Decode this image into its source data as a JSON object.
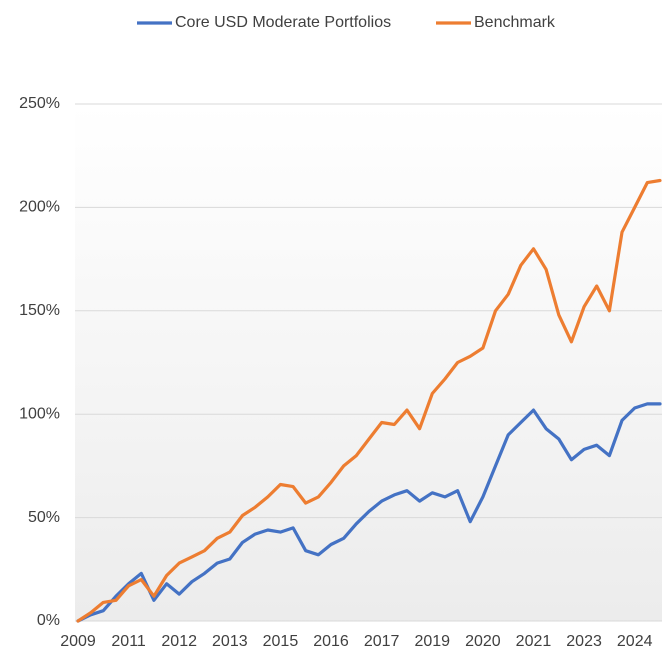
{
  "chart_data": {
    "type": "line",
    "categories": [
      "2009",
      null,
      null,
      null,
      "2011",
      null,
      null,
      null,
      "2012",
      null,
      null,
      null,
      "2013",
      null,
      null,
      null,
      "2015",
      null,
      null,
      null,
      "2016",
      null,
      null,
      null,
      "2017",
      null,
      null,
      null,
      "2019",
      null,
      null,
      null,
      "2020",
      null,
      null,
      null,
      "2021",
      null,
      null,
      null,
      "2023",
      null,
      null,
      null,
      "2024",
      null,
      null
    ],
    "series": [
      {
        "name": "Core USD Moderate Portfolios",
        "color": "#4472c4",
        "values": [
          0,
          3,
          5,
          12,
          18,
          23,
          10,
          18,
          13,
          19,
          23,
          28,
          30,
          38,
          42,
          44,
          43,
          45,
          34,
          32,
          37,
          40,
          47,
          53,
          58,
          61,
          63,
          58,
          62,
          60,
          63,
          48,
          60,
          75,
          90,
          96,
          102,
          93,
          88,
          78,
          83,
          85,
          80,
          97,
          103,
          105,
          105
        ]
      },
      {
        "name": "Benchmark",
        "color": "#ed7d31",
        "values": [
          0,
          4,
          9,
          10,
          17,
          20,
          12,
          22,
          28,
          31,
          34,
          40,
          43,
          51,
          55,
          60,
          66,
          65,
          57,
          60,
          67,
          75,
          80,
          88,
          96,
          95,
          102,
          93,
          110,
          117,
          125,
          128,
          132,
          150,
          158,
          172,
          180,
          170,
          148,
          135,
          152,
          162,
          150,
          188,
          200,
          212,
          213
        ]
      }
    ],
    "ylim": [
      0,
      250
    ],
    "yticks": [
      {
        "value": 0,
        "label": "0%"
      },
      {
        "value": 50,
        "label": "50%"
      },
      {
        "value": 100,
        "label": "100%"
      },
      {
        "value": 150,
        "label": "150%"
      },
      {
        "value": 200,
        "label": "200%"
      },
      {
        "value": 250,
        "label": "250%"
      }
    ],
    "grid": true,
    "legend": "top"
  }
}
